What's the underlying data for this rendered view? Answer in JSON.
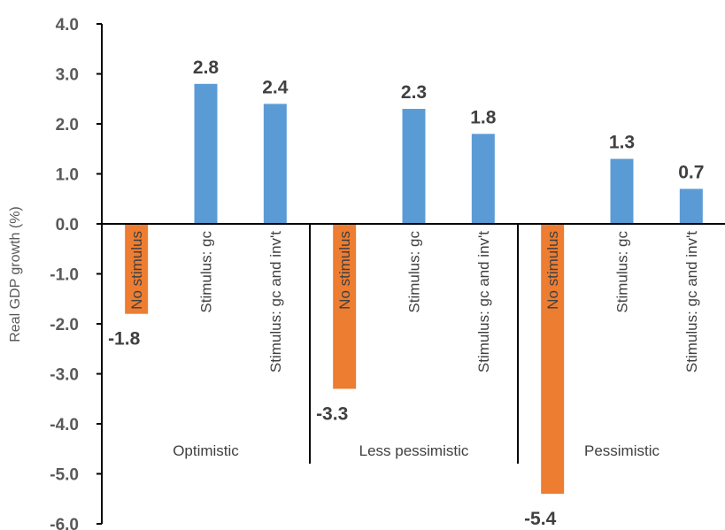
{
  "chart_data": {
    "type": "bar",
    "ylabel": "Real GDP growth (%)",
    "ylim": [
      -6.0,
      4.0
    ],
    "yticks": [
      4.0,
      3.0,
      2.0,
      1.0,
      0.0,
      -1.0,
      -2.0,
      -3.0,
      -4.0,
      -5.0,
      -6.0
    ],
    "ytick_labels": [
      "4.0",
      "3.0",
      "2.0",
      "1.0",
      "0.0",
      "-1.0",
      "-2.0",
      "-3.0",
      "-4.0",
      "-5.0",
      "-6.0"
    ],
    "grid": false,
    "legend": "none",
    "colors": {
      "no_stimulus": "#ED7D31",
      "stimulus": "#5B9BD5"
    },
    "groups": [
      {
        "name": "Optimistic",
        "bars": [
          {
            "category": "No stimulus",
            "value": -1.8,
            "label": "-1.8",
            "color_key": "no_stimulus"
          },
          {
            "category": "Stimulus: gc",
            "value": 2.8,
            "label": "2.8",
            "color_key": "stimulus"
          },
          {
            "category": "Stimulus: gc and inv't",
            "value": 2.4,
            "label": "2.4",
            "color_key": "stimulus"
          }
        ]
      },
      {
        "name": "Less pessimistic",
        "bars": [
          {
            "category": "No stimulus",
            "value": -3.3,
            "label": "-3.3",
            "color_key": "no_stimulus"
          },
          {
            "category": "Stimulus: gc",
            "value": 2.3,
            "label": "2.3",
            "color_key": "stimulus"
          },
          {
            "category": "Stimulus: gc and inv't",
            "value": 1.8,
            "label": "1.8",
            "color_key": "stimulus"
          }
        ]
      },
      {
        "name": "Pessimistic",
        "bars": [
          {
            "category": "No stimulus",
            "value": -5.4,
            "label": "-5.4",
            "color_key": "no_stimulus"
          },
          {
            "category": "Stimulus: gc",
            "value": 1.3,
            "label": "1.3",
            "color_key": "stimulus"
          },
          {
            "category": "Stimulus: gc and inv't",
            "value": 0.7,
            "label": "0.7",
            "color_key": "stimulus"
          }
        ]
      }
    ]
  }
}
